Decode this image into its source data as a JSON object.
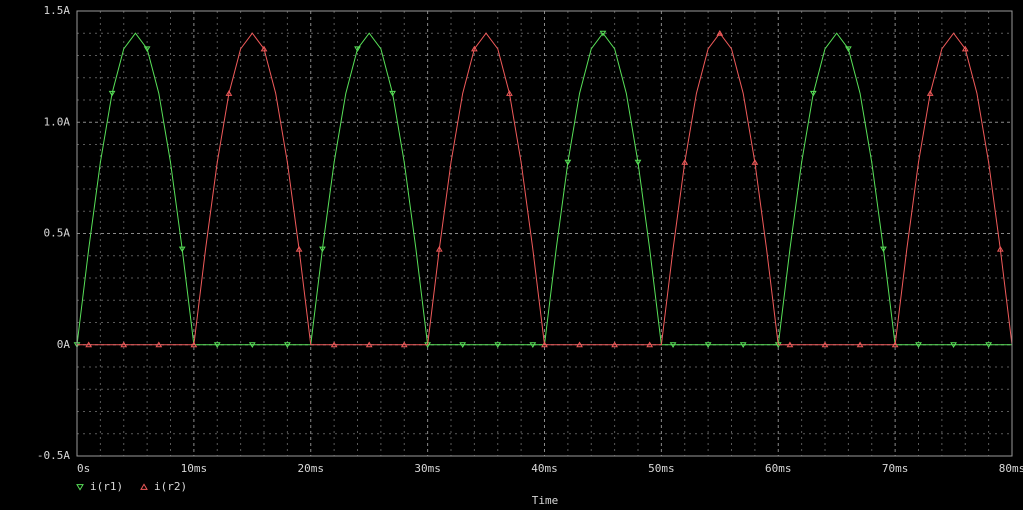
{
  "chart_data": {
    "type": "line",
    "x_label": "Time",
    "x": [
      0,
      1,
      2,
      3,
      4,
      5,
      6,
      7,
      8,
      9,
      10,
      11,
      12,
      13,
      14,
      15,
      16,
      17,
      18,
      19,
      20,
      21,
      22,
      23,
      24,
      25,
      26,
      27,
      28,
      29,
      30,
      31,
      32,
      33,
      34,
      35,
      36,
      37,
      38,
      39,
      40,
      41,
      42,
      43,
      44,
      45,
      46,
      47,
      48,
      49,
      50,
      51,
      52,
      53,
      54,
      55,
      56,
      57,
      58,
      59,
      60,
      61,
      62,
      63,
      64,
      65,
      66,
      67,
      68,
      69,
      70,
      71,
      72,
      73,
      74,
      75,
      76,
      77,
      78,
      79,
      80
    ],
    "series": [
      {
        "name": "i(r1)",
        "color": "#58e058",
        "marker": "down",
        "values": [
          0,
          0.43,
          0.82,
          1.13,
          1.33,
          1.4,
          1.33,
          1.13,
          0.82,
          0.43,
          0,
          0,
          0,
          0,
          0,
          0,
          0,
          0,
          0,
          0,
          0,
          0.43,
          0.82,
          1.13,
          1.33,
          1.4,
          1.33,
          1.13,
          0.82,
          0.43,
          0,
          0,
          0,
          0,
          0,
          0,
          0,
          0,
          0,
          0,
          0,
          0.43,
          0.82,
          1.13,
          1.33,
          1.4,
          1.33,
          1.13,
          0.82,
          0.43,
          0,
          0,
          0,
          0,
          0,
          0,
          0,
          0,
          0,
          0,
          0,
          0.43,
          0.82,
          1.13,
          1.33,
          1.4,
          1.33,
          1.13,
          0.82,
          0.43,
          0,
          0,
          0,
          0,
          0,
          0,
          0,
          0,
          0,
          0,
          0
        ]
      },
      {
        "name": "i(r2)",
        "color": "#f05a5a",
        "marker": "up",
        "values": [
          0,
          0,
          0,
          0,
          0,
          0,
          0,
          0,
          0,
          0,
          0,
          0.43,
          0.82,
          1.13,
          1.33,
          1.4,
          1.33,
          1.13,
          0.82,
          0.43,
          0,
          0,
          0,
          0,
          0,
          0,
          0,
          0,
          0,
          0,
          0,
          0.43,
          0.82,
          1.13,
          1.33,
          1.4,
          1.33,
          1.13,
          0.82,
          0.43,
          0,
          0,
          0,
          0,
          0,
          0,
          0,
          0,
          0,
          0,
          0,
          0.43,
          0.82,
          1.13,
          1.33,
          1.4,
          1.33,
          1.13,
          0.82,
          0.43,
          0,
          0,
          0,
          0,
          0,
          0,
          0,
          0,
          0,
          0,
          0,
          0.43,
          0.82,
          1.13,
          1.33,
          1.4,
          1.33,
          1.13,
          0.82,
          0.43,
          0
        ]
      }
    ],
    "xlim": [
      0,
      80
    ],
    "xticks": [
      {
        "value": 0,
        "label": "0s"
      },
      {
        "value": 10,
        "label": "10ms"
      },
      {
        "value": 20,
        "label": "20ms"
      },
      {
        "value": 30,
        "label": "30ms"
      },
      {
        "value": 40,
        "label": "40ms"
      },
      {
        "value": 50,
        "label": "50ms"
      },
      {
        "value": 60,
        "label": "60ms"
      },
      {
        "value": 70,
        "label": "70ms"
      },
      {
        "value": 80,
        "label": "80ms"
      }
    ],
    "ylim": [
      -0.5,
      1.5
    ],
    "yticks": [
      {
        "value": -0.5,
        "label": "-0.5A"
      },
      {
        "value": 0,
        "label": "0A"
      },
      {
        "value": 0.5,
        "label": "0.5A"
      },
      {
        "value": 1.0,
        "label": "1.0A"
      },
      {
        "value": 1.5,
        "label": "1.5A"
      }
    ],
    "grid": true
  }
}
